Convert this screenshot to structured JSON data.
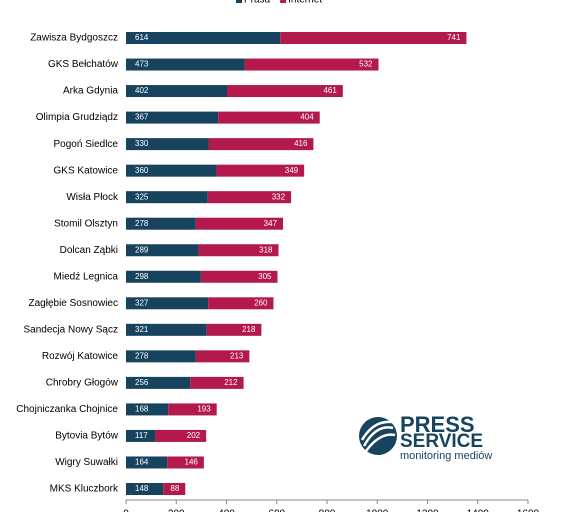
{
  "chart_data": {
    "type": "stacked-barh",
    "categories": [
      "Zawisza Bydgoszcz",
      "GKS Bełchatów",
      "Arka Gdynia",
      "Olimpia Grudziądz",
      "Pogoń Siedlce",
      "GKS Katowice",
      "Wisła Płock",
      "Stomil Olsztyn",
      "Dolcan Ząbki",
      "Miedź Legnica",
      "Zagłębie Sosnowiec",
      "Sandecja Nowy Sącz",
      "Rozwój Katowice",
      "Chrobry Głogów",
      "Chojniczanka Chojnice",
      "Bytovia Bytów",
      "Wigry Suwałki",
      "MKS Kluczbork"
    ],
    "series": [
      {
        "name": "Prasa",
        "color": "#17435f",
        "values": [
          614,
          473,
          402,
          367,
          330,
          360,
          325,
          278,
          289,
          298,
          327,
          321,
          278,
          256,
          168,
          117,
          164,
          148
        ]
      },
      {
        "name": "Internet",
        "color": "#b3194b",
        "values": [
          741,
          532,
          461,
          404,
          416,
          349,
          332,
          347,
          318,
          305,
          260,
          218,
          213,
          212,
          193,
          202,
          146,
          88
        ]
      }
    ],
    "xlim": [
      0,
      1600
    ],
    "xticks": [
      0,
      200,
      400,
      600,
      800,
      1000,
      1200,
      1400,
      1600
    ],
    "legend": "top",
    "annotations": [
      "PRESS",
      "SERVICE",
      "monitoring mediów"
    ]
  }
}
